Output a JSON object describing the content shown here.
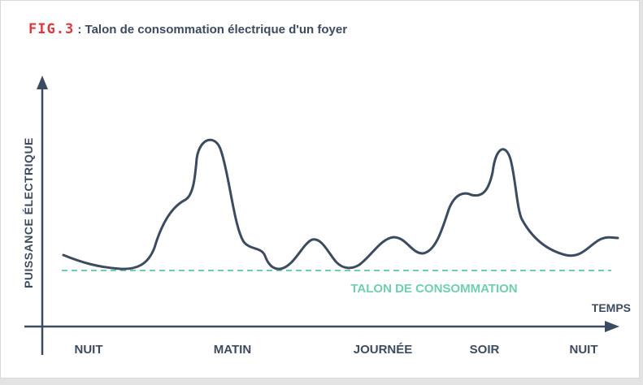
{
  "figure": {
    "number": "FIG.3",
    "separator": " : ",
    "title": "Talon de consommation électrique d'un foyer"
  },
  "axes": {
    "y_label": "PUISSANCE ÉLECTRIQUE",
    "x_label": "TEMPS"
  },
  "baseline": {
    "label": "TALON DE CONSOMMATION"
  },
  "periods": [
    "NUIT",
    "MATIN",
    "JOURNÉE",
    "SOIR",
    "NUIT"
  ],
  "colors": {
    "accent": "#d9393f",
    "axis": "#3d4b60",
    "curve": "#3d4b60",
    "baseline": "#6fcfae"
  }
}
